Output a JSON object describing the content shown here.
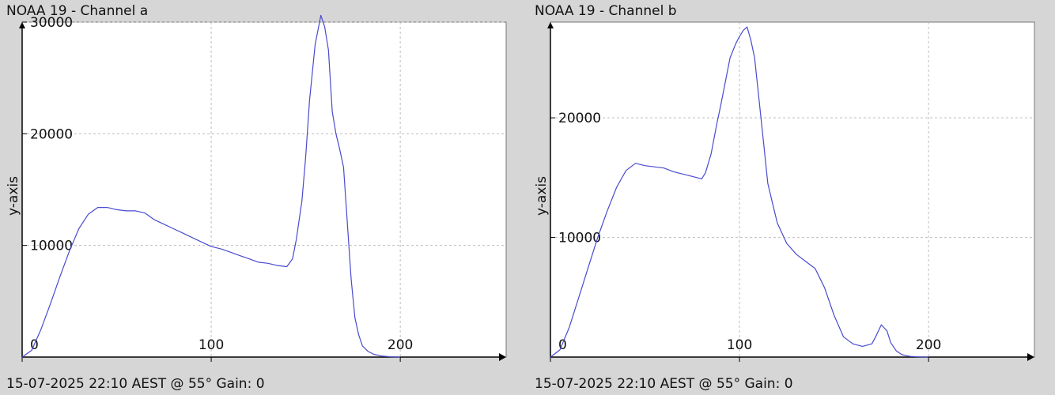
{
  "chart_data": [
    {
      "type": "line",
      "title": "NOAA 19 - Channel a",
      "ylabel": "y-axis",
      "footer": "15-07-2025 22:10 AEST @ 55° Gain: 0",
      "xlim": [
        0,
        256
      ],
      "ylim": [
        0,
        30000
      ],
      "xticks": [
        0,
        100,
        200
      ],
      "yticks": [
        10000,
        20000,
        30000
      ],
      "grid": true,
      "line_color": "#4a4ad0",
      "series": [
        {
          "x": [
            0,
            5,
            10,
            15,
            20,
            25,
            30,
            35,
            40,
            45,
            50,
            55,
            60,
            65,
            70,
            75,
            80,
            85,
            90,
            95,
            100,
            105,
            110,
            115,
            120,
            125,
            130,
            135,
            140,
            143,
            145,
            148,
            150,
            152,
            155,
            158,
            160,
            162,
            164,
            166,
            168,
            170,
            172,
            174,
            176,
            178,
            180,
            183,
            186,
            190,
            195,
            200
          ],
          "y": [
            0,
            600,
            2500,
            4800,
            7200,
            9500,
            11500,
            12800,
            13400,
            13400,
            13200,
            13100,
            13100,
            12900,
            12300,
            11900,
            11500,
            11100,
            10700,
            10300,
            9900,
            9700,
            9400,
            9100,
            8800,
            8500,
            8400,
            8200,
            8100,
            8800,
            10500,
            14000,
            18000,
            23000,
            28000,
            30600,
            29600,
            27500,
            22000,
            20000,
            18600,
            17000,
            12000,
            7000,
            3500,
            2000,
            1000,
            500,
            250,
            100,
            20,
            0
          ]
        }
      ]
    },
    {
      "type": "line",
      "title": "NOAA 19 - Channel b",
      "ylabel": "y-axis",
      "footer": "15-07-2025 22:10 AEST @ 55° Gain: 0",
      "xlim": [
        0,
        256
      ],
      "ylim": [
        0,
        28000
      ],
      "xticks": [
        0,
        100,
        200
      ],
      "yticks": [
        10000,
        20000
      ],
      "grid": true,
      "line_color": "#4a4ad0",
      "series": [
        {
          "x": [
            0,
            5,
            10,
            15,
            20,
            25,
            30,
            35,
            40,
            45,
            50,
            55,
            60,
            65,
            70,
            75,
            80,
            82,
            85,
            88,
            90,
            95,
            98,
            100,
            102,
            104,
            106,
            108,
            110,
            112,
            115,
            118,
            120,
            125,
            130,
            135,
            140,
            145,
            150,
            155,
            160,
            165,
            170,
            172,
            175,
            178,
            180,
            183,
            186,
            190,
            195,
            200
          ],
          "y": [
            0,
            600,
            2500,
            5000,
            7500,
            10000,
            12200,
            14200,
            15600,
            16200,
            16000,
            15900,
            15800,
            15500,
            15300,
            15100,
            14900,
            15400,
            17000,
            19500,
            21000,
            25000,
            26200,
            26800,
            27300,
            27600,
            26500,
            25000,
            22000,
            19000,
            14500,
            12500,
            11200,
            9500,
            8600,
            8000,
            7400,
            5800,
            3500,
            1700,
            1100,
            900,
            1100,
            1700,
            2700,
            2200,
            1200,
            500,
            200,
            60,
            10,
            0
          ]
        }
      ]
    }
  ]
}
